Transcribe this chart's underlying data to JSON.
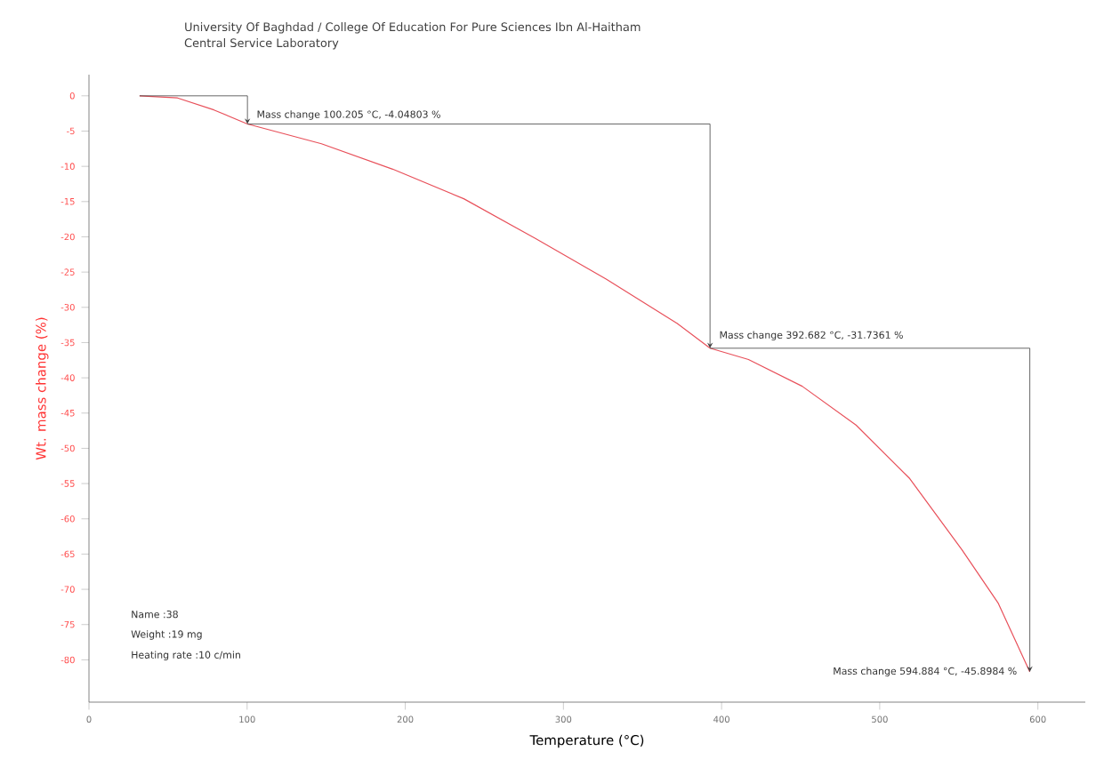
{
  "chart_data": {
    "type": "line",
    "title": "University Of Baghdad / College Of Education For Pure Sciences Ibn Al-Haitham",
    "subtitle": "Central Service Laboratory",
    "xlabel": "Temperature (°C)",
    "ylabel": "Wt. mass change (%)",
    "xlim": [
      0,
      630
    ],
    "ylim": [
      -86,
      3
    ],
    "xticks": [
      0,
      100,
      200,
      300,
      400,
      500,
      600
    ],
    "yticks": [
      0,
      -5,
      -10,
      -15,
      -20,
      -25,
      -30,
      -35,
      -40,
      -45,
      -50,
      -55,
      -60,
      -65,
      -70,
      -75,
      -80
    ],
    "grid": false,
    "marker": "none",
    "line_style": "solid",
    "series": [
      {
        "color": "#e8505a",
        "x": [
          32,
          56,
          79,
          100.2,
          147,
          192,
          237,
          282,
          327,
          372,
          392.7,
          417,
          451,
          485,
          519,
          552,
          575,
          594.9
        ],
        "values": [
          0,
          -0.3,
          -2,
          -4.0,
          -6.8,
          -10.4,
          -14.6,
          -20.2,
          -26,
          -32.3,
          -35.8,
          -37.4,
          -41.2,
          -46.7,
          -54.3,
          -64.4,
          -72,
          -81.7
        ]
      }
    ],
    "annotations": [
      {
        "text": "Mass change 100.205 °C,  -4.04803 %",
        "x": 100.2,
        "y": -4.0
      },
      {
        "text": "Mass change 392.682 °C,  -31.7361 %",
        "x": 392.7,
        "y": -35.8
      },
      {
        "text": "Mass change 594.884 °C,  -45.8984 %",
        "x": 594.9,
        "y": -81.7
      },
      "Name :38",
      "Weight :19  mg",
      "Heating rate :10 c/min"
    ]
  }
}
